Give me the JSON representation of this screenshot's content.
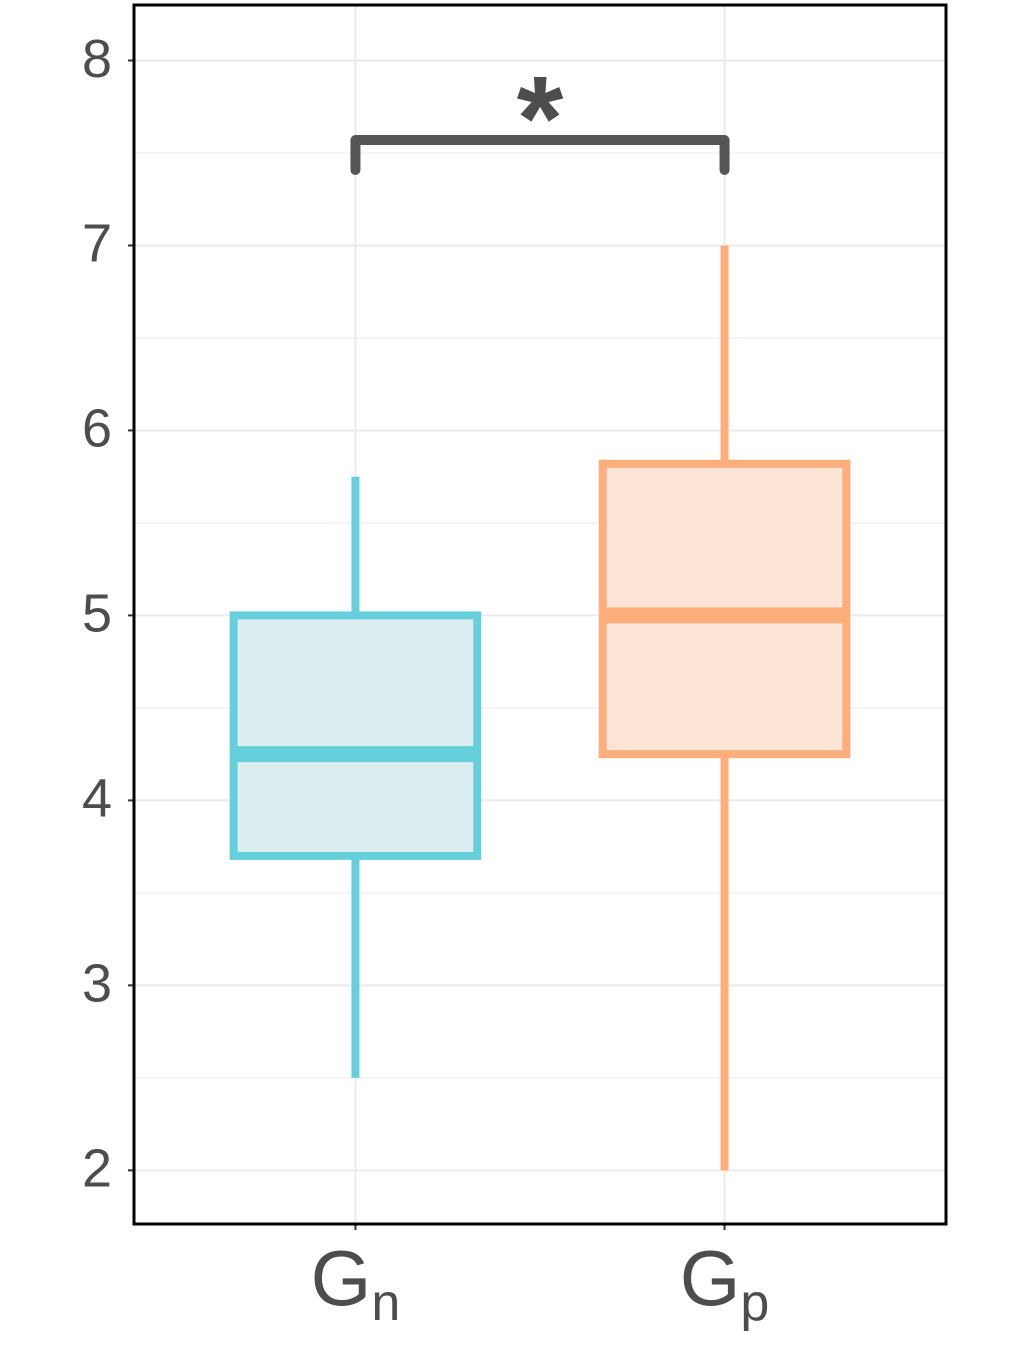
{
  "chart_data": {
    "type": "box",
    "categories": [
      "Gn",
      "Gp"
    ],
    "whisker_low": [
      2.5,
      2
    ],
    "q1": [
      3.7,
      4.25
    ],
    "median": [
      4.25,
      5
    ],
    "q3": [
      5,
      5.82
    ],
    "whisker_high": [
      5.75,
      7
    ],
    "colors": [
      "#66cfdc",
      "#fdae7a"
    ],
    "fills": [
      "#ddeef1",
      "#fce4d6"
    ],
    "ylim": [
      1.71,
      8.3
    ],
    "yticks": [
      2,
      3,
      4,
      5,
      6,
      7,
      8
    ],
    "grid": true,
    "annotation": "*"
  }
}
